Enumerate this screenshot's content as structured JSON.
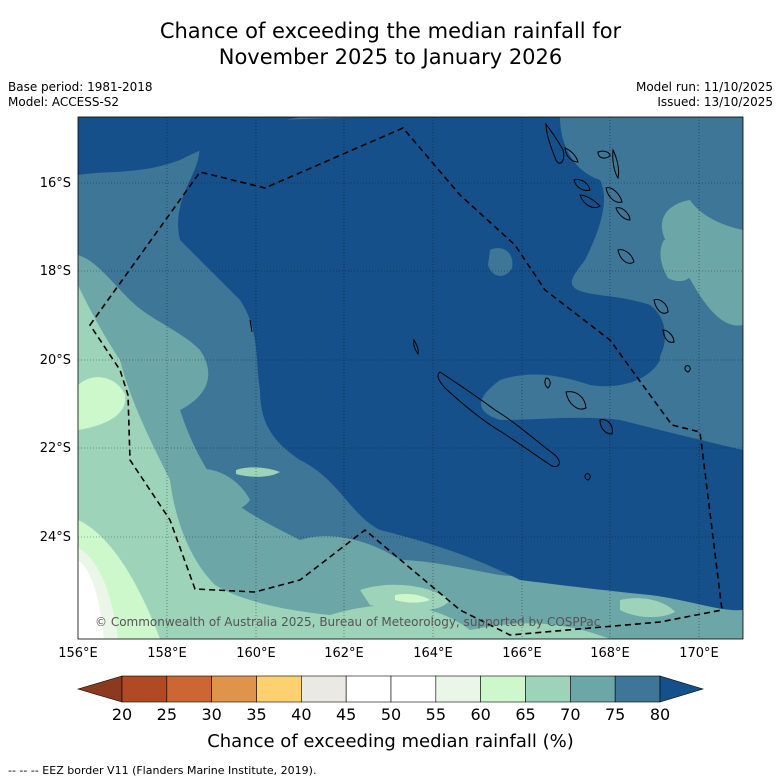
{
  "title_line1": "Chance of exceeding the median rainfall for",
  "title_line2": "November 2025 to January 2026",
  "meta": {
    "base_period": "Base period: 1981-2018",
    "model": "Model: ACCESS-S2",
    "model_run": "Model run: 11/10/2025",
    "issued": "Issued: 13/10/2025"
  },
  "copyright": "© Commonwealth of Australia 2025, Bureau of Meteorology, supported by COSPPac",
  "lat_labels": [
    "16°S",
    "18°S",
    "20°S",
    "22°S",
    "24°S"
  ],
  "lon_labels": [
    "156°E",
    "158°E",
    "160°E",
    "162°E",
    "164°E",
    "166°E",
    "168°E",
    "170°E"
  ],
  "colorbar": {
    "ticks": [
      "20",
      "25",
      "30",
      "35",
      "40",
      "45",
      "50",
      "55",
      "60",
      "65",
      "70",
      "75",
      "80"
    ],
    "colors": [
      "#8b3a1f",
      "#b04a24",
      "#cc6633",
      "#e0944a",
      "#fdd070",
      "#ebe9e4",
      "#ffffff",
      "#ffffff",
      "#eaf6e8",
      "#ccf8cc",
      "#9dd3b9",
      "#6ca6a6",
      "#3e7698",
      "#16508a"
    ],
    "title": "Chance of exceeding median rainfall (%)"
  },
  "footnote": "--  --  -- EEZ border V11 (Flanders Marine Institute, 2019)."
}
